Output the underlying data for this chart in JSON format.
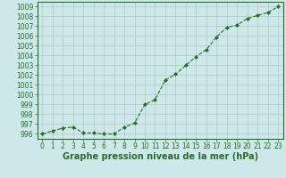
{
  "x": [
    0,
    1,
    2,
    3,
    4,
    5,
    6,
    7,
    8,
    9,
    10,
    11,
    12,
    13,
    14,
    15,
    16,
    17,
    18,
    19,
    20,
    21,
    22,
    23
  ],
  "y": [
    996.0,
    996.3,
    996.6,
    996.7,
    996.1,
    996.1,
    996.0,
    996.0,
    996.7,
    997.1,
    999.0,
    999.5,
    1001.5,
    1002.1,
    1003.0,
    1003.9,
    1004.6,
    1005.9,
    1006.9,
    1007.1,
    1007.8,
    1008.1,
    1008.4,
    1009.0
  ],
  "line_color": "#2d6a2d",
  "marker": "D",
  "marker_size": 2.0,
  "bg_color": "#cce8e8",
  "grid_color": "#b0c8c8",
  "ylim": [
    995.5,
    1009.5
  ],
  "xlim": [
    -0.5,
    23.5
  ],
  "yticks": [
    996,
    997,
    998,
    999,
    1000,
    1001,
    1002,
    1003,
    1004,
    1005,
    1006,
    1007,
    1008,
    1009
  ],
  "xticks": [
    0,
    1,
    2,
    3,
    4,
    5,
    6,
    7,
    8,
    9,
    10,
    11,
    12,
    13,
    14,
    15,
    16,
    17,
    18,
    19,
    20,
    21,
    22,
    23
  ],
  "xlabel": "Graphe pression niveau de la mer (hPa)",
  "xlabel_fontsize": 7,
  "tick_fontsize": 5.5,
  "line_width": 0.8
}
